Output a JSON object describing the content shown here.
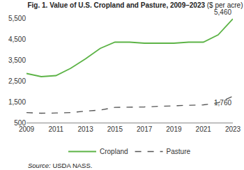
{
  "chart_data": {
    "type": "line",
    "title": "Fig. 1. Value of U.S. Cropland and Pasture, 2009–2023",
    "subtitle": "($ per acre)",
    "source": "Source: USDA NASS.",
    "x": [
      2009,
      2010,
      2011,
      2012,
      2013,
      2014,
      2015,
      2016,
      2017,
      2018,
      2019,
      2020,
      2021,
      2022,
      2023
    ],
    "series": [
      {
        "name": "Cropland",
        "color": "#5cb346",
        "line_style": "solid",
        "values": [
          2850,
          2700,
          2750,
          3100,
          3550,
          4050,
          4350,
          4350,
          4300,
          4300,
          4300,
          4350,
          4350,
          4700,
          5460
        ]
      },
      {
        "name": "Pasture",
        "color": "#555555",
        "line_style": "dashed",
        "values": [
          980,
          950,
          960,
          980,
          1050,
          1100,
          1230,
          1230,
          1250,
          1280,
          1300,
          1330,
          1350,
          1450,
          1760
        ]
      }
    ],
    "annotations": [
      {
        "text": "5,460",
        "x": 2023,
        "y": 5460
      },
      {
        "text": "1,760",
        "x": 2023,
        "y": 1760
      }
    ],
    "xlim": [
      2009,
      2023
    ],
    "xticks": [
      2009,
      2011,
      2013,
      2015,
      2017,
      2019,
      2021,
      2023
    ],
    "ylim": [
      500,
      5500
    ],
    "yticks": [
      500,
      {
        "value": 1500,
        "label": "1,500"
      },
      {
        "value": 2500,
        "label": "2,500"
      },
      {
        "value": 3500,
        "label": "3,500"
      },
      {
        "value": 4500,
        "label": "4,500"
      },
      {
        "value": 5500,
        "label": "5,500"
      }
    ],
    "grid": false,
    "legend": "bottom"
  }
}
